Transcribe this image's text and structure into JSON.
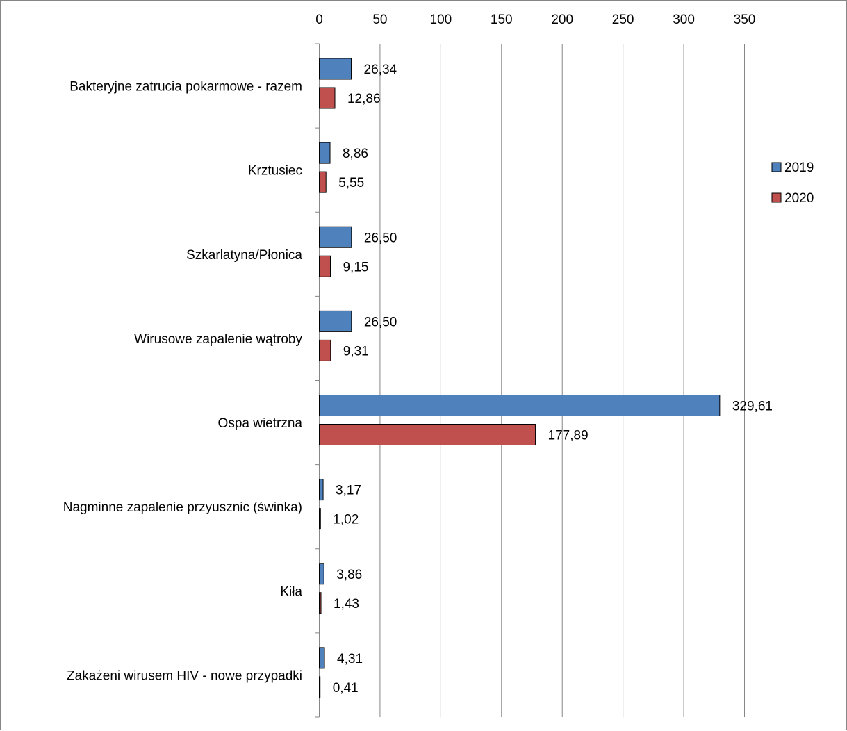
{
  "chart_data": {
    "type": "bar",
    "orientation": "horizontal",
    "categories": [
      "Bakteryjne zatrucia pokarmowe - razem",
      "Krztusiec",
      "Szkarlatyna/Płonica",
      "Wirusowe zapalenie wątroby",
      "Ospa wietrzna",
      "Nagminne zapalenie przyusznic (świnka)",
      "Kiła",
      "Zakażeni wirusem HIV - nowe przypadki"
    ],
    "series": [
      {
        "name": "2019",
        "color": "#4f81bd",
        "values": [
          26.34,
          8.86,
          26.5,
          26.5,
          329.61,
          3.17,
          3.86,
          4.31
        ],
        "labels": [
          "26,34",
          "8,86",
          "26,50",
          "26,50",
          "329,61",
          "3,17",
          "3,86",
          "4,31"
        ]
      },
      {
        "name": "2020",
        "color": "#c0504d",
        "values": [
          12.86,
          5.55,
          9.15,
          9.31,
          177.89,
          1.02,
          1.43,
          0.41
        ],
        "labels": [
          "12,86",
          "5,55",
          "9,15",
          "9,31",
          "177,89",
          "1,02",
          "1,43",
          "0,41"
        ]
      }
    ],
    "x_ticks": [
      "0",
      "50",
      "100",
      "150",
      "200",
      "250",
      "300",
      "350"
    ],
    "xlim": [
      0,
      350
    ],
    "x_axis_position": "top",
    "grid": true,
    "legend_position": "right",
    "title": "",
    "xlabel": "",
    "ylabel": ""
  }
}
